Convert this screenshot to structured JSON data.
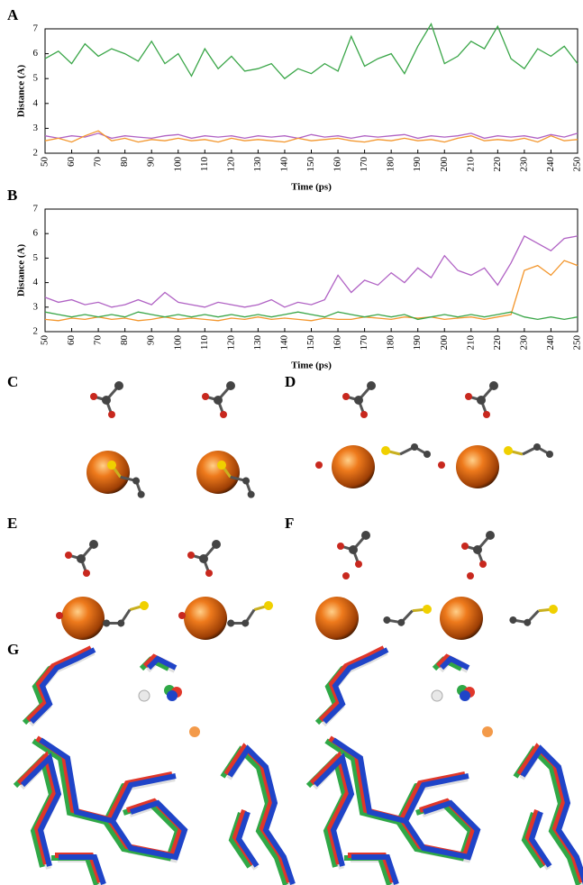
{
  "chart_data": [
    {
      "type": "line",
      "panel": "A",
      "xlabel": "Time (ps)",
      "ylabel": "Distance (A)",
      "xlim": [
        50,
        250
      ],
      "ylim": [
        2,
        7
      ],
      "xticks": [
        50,
        60,
        70,
        80,
        90,
        100,
        110,
        120,
        130,
        140,
        150,
        160,
        170,
        180,
        190,
        200,
        210,
        220,
        230,
        240,
        250
      ],
      "yticks": [
        2,
        3,
        4,
        5,
        6,
        7
      ],
      "x": [
        50,
        55,
        60,
        65,
        70,
        75,
        80,
        85,
        90,
        95,
        100,
        105,
        110,
        115,
        120,
        125,
        130,
        135,
        140,
        145,
        150,
        155,
        160,
        165,
        170,
        175,
        180,
        185,
        190,
        195,
        200,
        205,
        210,
        215,
        220,
        225,
        230,
        235,
        240,
        245,
        250
      ],
      "series": [
        {
          "color": "#3aa648",
          "values": [
            5.8,
            6.1,
            5.6,
            6.4,
            5.9,
            6.2,
            6.0,
            5.7,
            6.5,
            5.6,
            6.0,
            5.1,
            6.2,
            5.4,
            5.9,
            5.3,
            5.4,
            5.6,
            5.0,
            5.4,
            5.2,
            5.6,
            5.3,
            6.7,
            5.5,
            5.8,
            6.0,
            5.2,
            6.3,
            7.2,
            5.6,
            5.9,
            6.5,
            6.2,
            7.1,
            5.8,
            5.4,
            6.2,
            5.9,
            6.3,
            5.6
          ]
        },
        {
          "color": "#b062c4",
          "values": [
            2.7,
            2.6,
            2.7,
            2.65,
            2.8,
            2.6,
            2.7,
            2.65,
            2.6,
            2.7,
            2.75,
            2.6,
            2.7,
            2.65,
            2.7,
            2.6,
            2.7,
            2.65,
            2.7,
            2.6,
            2.75,
            2.65,
            2.7,
            2.6,
            2.7,
            2.65,
            2.7,
            2.75,
            2.6,
            2.7,
            2.65,
            2.7,
            2.8,
            2.6,
            2.7,
            2.65,
            2.7,
            2.6,
            2.75,
            2.65,
            2.8
          ]
        },
        {
          "color": "#f3962c",
          "values": [
            2.5,
            2.6,
            2.45,
            2.7,
            2.9,
            2.5,
            2.6,
            2.45,
            2.55,
            2.5,
            2.6,
            2.5,
            2.55,
            2.45,
            2.6,
            2.5,
            2.55,
            2.5,
            2.45,
            2.6,
            2.5,
            2.55,
            2.6,
            2.5,
            2.45,
            2.55,
            2.5,
            2.6,
            2.5,
            2.55,
            2.45,
            2.6,
            2.7,
            2.5,
            2.55,
            2.5,
            2.6,
            2.45,
            2.7,
            2.5,
            2.55
          ]
        }
      ]
    },
    {
      "type": "line",
      "panel": "B",
      "xlabel": "Time (ps)",
      "ylabel": "Distance (A)",
      "xlim": [
        50,
        250
      ],
      "ylim": [
        2,
        7
      ],
      "xticks": [
        50,
        60,
        70,
        80,
        90,
        100,
        110,
        120,
        130,
        140,
        150,
        160,
        170,
        180,
        190,
        200,
        210,
        220,
        230,
        240,
        250
      ],
      "yticks": [
        2,
        3,
        4,
        5,
        6,
        7
      ],
      "x": [
        50,
        55,
        60,
        65,
        70,
        75,
        80,
        85,
        90,
        95,
        100,
        105,
        110,
        115,
        120,
        125,
        130,
        135,
        140,
        145,
        150,
        155,
        160,
        165,
        170,
        175,
        180,
        185,
        190,
        195,
        200,
        205,
        210,
        215,
        220,
        225,
        230,
        235,
        240,
        245,
        250
      ],
      "series": [
        {
          "color": "#b062c4",
          "values": [
            3.4,
            3.2,
            3.3,
            3.1,
            3.2,
            3.0,
            3.1,
            3.3,
            3.1,
            3.6,
            3.2,
            3.1,
            3.0,
            3.2,
            3.1,
            3.0,
            3.1,
            3.3,
            3.0,
            3.2,
            3.1,
            3.3,
            4.3,
            3.6,
            4.1,
            3.9,
            4.4,
            4.0,
            4.6,
            4.2,
            5.1,
            4.5,
            4.3,
            4.6,
            3.9,
            4.8,
            5.9,
            5.6,
            5.3,
            5.8,
            5.9
          ]
        },
        {
          "color": "#f3962c",
          "values": [
            2.5,
            2.45,
            2.55,
            2.5,
            2.6,
            2.5,
            2.55,
            2.45,
            2.5,
            2.6,
            2.5,
            2.55,
            2.5,
            2.45,
            2.55,
            2.5,
            2.6,
            2.5,
            2.55,
            2.5,
            2.45,
            2.55,
            2.5,
            2.5,
            2.6,
            2.55,
            2.5,
            2.6,
            2.55,
            2.6,
            2.5,
            2.55,
            2.6,
            2.5,
            2.6,
            2.7,
            4.5,
            4.7,
            4.3,
            4.9,
            4.7
          ]
        },
        {
          "color": "#3aa648",
          "values": [
            2.8,
            2.7,
            2.6,
            2.7,
            2.6,
            2.7,
            2.6,
            2.8,
            2.7,
            2.6,
            2.7,
            2.6,
            2.7,
            2.6,
            2.7,
            2.6,
            2.7,
            2.6,
            2.7,
            2.8,
            2.7,
            2.6,
            2.8,
            2.7,
            2.6,
            2.7,
            2.6,
            2.7,
            2.5,
            2.6,
            2.7,
            2.6,
            2.7,
            2.6,
            2.7,
            2.8,
            2.6,
            2.5,
            2.6,
            2.5,
            2.6
          ]
        }
      ]
    }
  ],
  "panels": [
    {
      "label": "C"
    },
    {
      "label": "D"
    },
    {
      "label": "E"
    },
    {
      "label": "F"
    },
    {
      "label": "G"
    }
  ]
}
